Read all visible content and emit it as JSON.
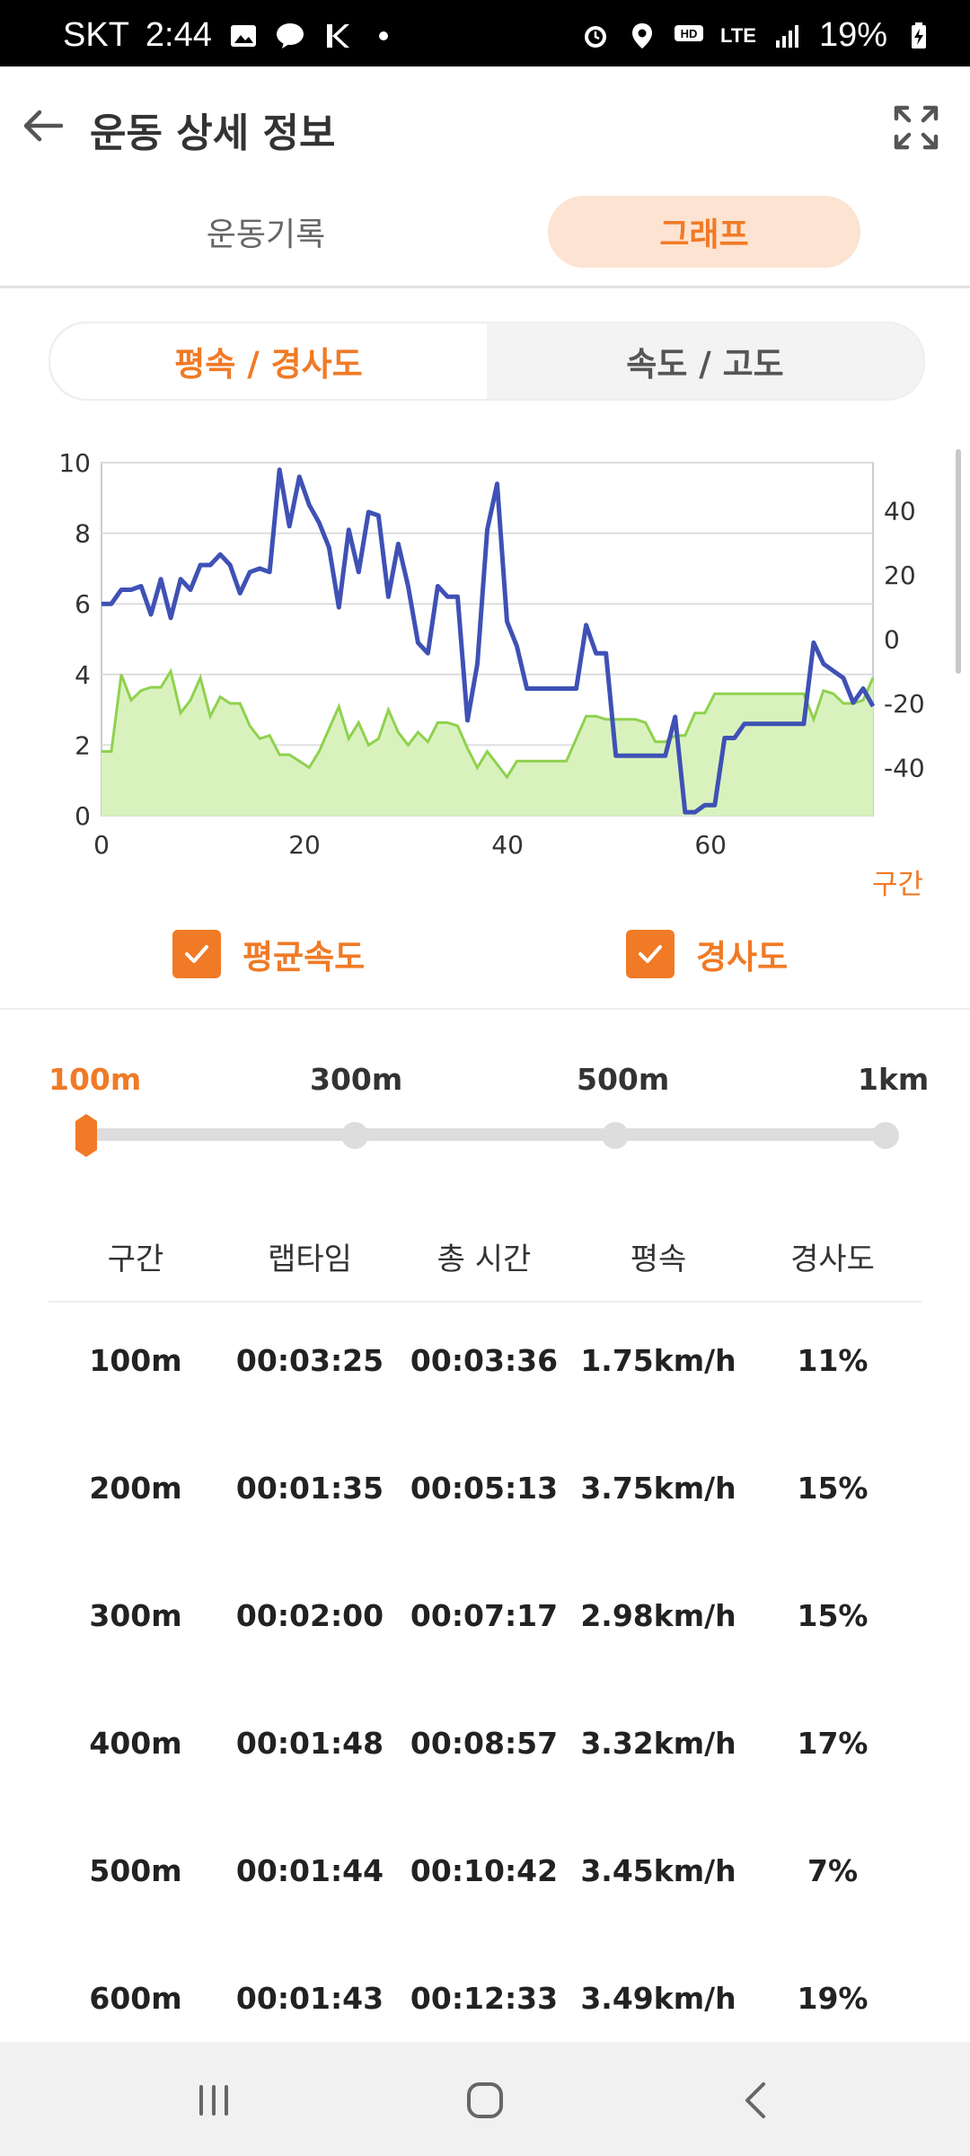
{
  "status_bar": {
    "carrier": "SKT",
    "time": "2:44",
    "battery": "19%",
    "network": "LTE",
    "left_icons": [
      "image-icon",
      "talk-icon",
      "k-icon",
      "dot-icon"
    ],
    "right_icons": [
      "alarm-icon",
      "location-icon",
      "hd-voice-icon",
      "lte-icon",
      "signal-icon",
      "battery-charging-icon"
    ]
  },
  "header": {
    "title": "운동 상세 정보",
    "back_icon": "arrow-left-icon",
    "expand_icon": "fullscreen-icon"
  },
  "tabs": [
    {
      "label": "운동기록",
      "active": false
    },
    {
      "label": "그래프",
      "active": true
    }
  ],
  "segment": [
    {
      "label": "평속 / 경사도",
      "active": true
    },
    {
      "label": "속도 / 고도",
      "active": false
    }
  ],
  "legend": [
    {
      "label": "평균속도",
      "checked": true
    },
    {
      "label": "경사도",
      "checked": true
    }
  ],
  "distance_options": [
    {
      "label": "100m",
      "selected": true
    },
    {
      "label": "300m",
      "selected": false
    },
    {
      "label": "500m",
      "selected": false
    },
    {
      "label": "1km",
      "selected": false
    }
  ],
  "table": {
    "headers": [
      "구간",
      "랩타임",
      "총 시간",
      "평속",
      "경사도"
    ],
    "rows": [
      [
        "100m",
        "00:03:25",
        "00:03:36",
        "1.75km/h",
        "11%"
      ],
      [
        "200m",
        "00:01:35",
        "00:05:13",
        "3.75km/h",
        "15%"
      ],
      [
        "300m",
        "00:02:00",
        "00:07:17",
        "2.98km/h",
        "15%"
      ],
      [
        "400m",
        "00:01:48",
        "00:08:57",
        "3.32km/h",
        "17%"
      ],
      [
        "500m",
        "00:01:44",
        "00:10:42",
        "3.45km/h",
        "7%"
      ],
      [
        "600m",
        "00:01:43",
        "00:12:33",
        "3.49km/h",
        "19%"
      ]
    ]
  },
  "chart_data": {
    "type": "line",
    "xlabel": "구간",
    "x_ticks": [
      0,
      20,
      40,
      60
    ],
    "xlim": [
      0,
      76
    ],
    "y_left_ticks": [
      0,
      2,
      4,
      6,
      8,
      10
    ],
    "ylim_left": [
      0,
      10
    ],
    "y_right_ticks": [
      40,
      20,
      0,
      -20,
      -40
    ],
    "ylim_right": [
      -55,
      55
    ],
    "grid": true,
    "colors": {
      "speed": "#3f51b5",
      "slope_line": "#8fd14f",
      "slope_fill": "#d9f2bd",
      "accent": "#f07a26"
    },
    "series": [
      {
        "axis": "left",
        "values": [
          6.0,
          6.0,
          6.4,
          6.4,
          6.5,
          5.7,
          6.7,
          5.6,
          6.7,
          6.4,
          7.1,
          7.1,
          7.4,
          7.1,
          6.3,
          6.9,
          7.0,
          6.9,
          9.8,
          8.2,
          9.6,
          8.8,
          8.3,
          7.6,
          5.9,
          8.1,
          6.9,
          8.6,
          8.5,
          6.2,
          7.7,
          6.5,
          4.9,
          4.6,
          6.5,
          6.2,
          6.2,
          2.7,
          4.3,
          8.1,
          9.4,
          5.5,
          4.8,
          3.6,
          3.6,
          3.6,
          3.6,
          3.6,
          3.6,
          5.4,
          4.6,
          4.6,
          1.7,
          1.7,
          1.7,
          1.7,
          1.7,
          1.7,
          2.8,
          0.1,
          0.1,
          0.3,
          0.3,
          2.2,
          2.2,
          2.6,
          2.6,
          2.6,
          2.6,
          2.6,
          2.6,
          2.6,
          4.9,
          4.3,
          4.1,
          3.9,
          3.2,
          3.6,
          3.1
        ]
      },
      {
        "axis": "right",
        "values": [
          -35,
          -35,
          -11,
          -19,
          -16,
          -15,
          -15,
          -10,
          -23,
          -19,
          -12,
          -24,
          -18,
          -20,
          -20,
          -27,
          -31,
          -30,
          -36,
          -36,
          -38,
          -40,
          -35,
          -28,
          -21,
          -31,
          -26,
          -33,
          -31,
          -22,
          -29,
          -33,
          -29,
          -32,
          -26,
          -26,
          -27,
          -34,
          -40,
          -35,
          -39,
          -43,
          -38,
          -38,
          -38,
          -38,
          -38,
          -38,
          -31,
          -24,
          -24,
          -25,
          -25,
          -25,
          -25,
          -26,
          -32,
          -32,
          -30,
          -30,
          -23,
          -23,
          -17,
          -17,
          -17,
          -17,
          -17,
          -17,
          -17,
          -17,
          -17,
          -17,
          -25,
          -16,
          -17,
          -20,
          -20,
          -19,
          -12
        ]
      }
    ]
  }
}
